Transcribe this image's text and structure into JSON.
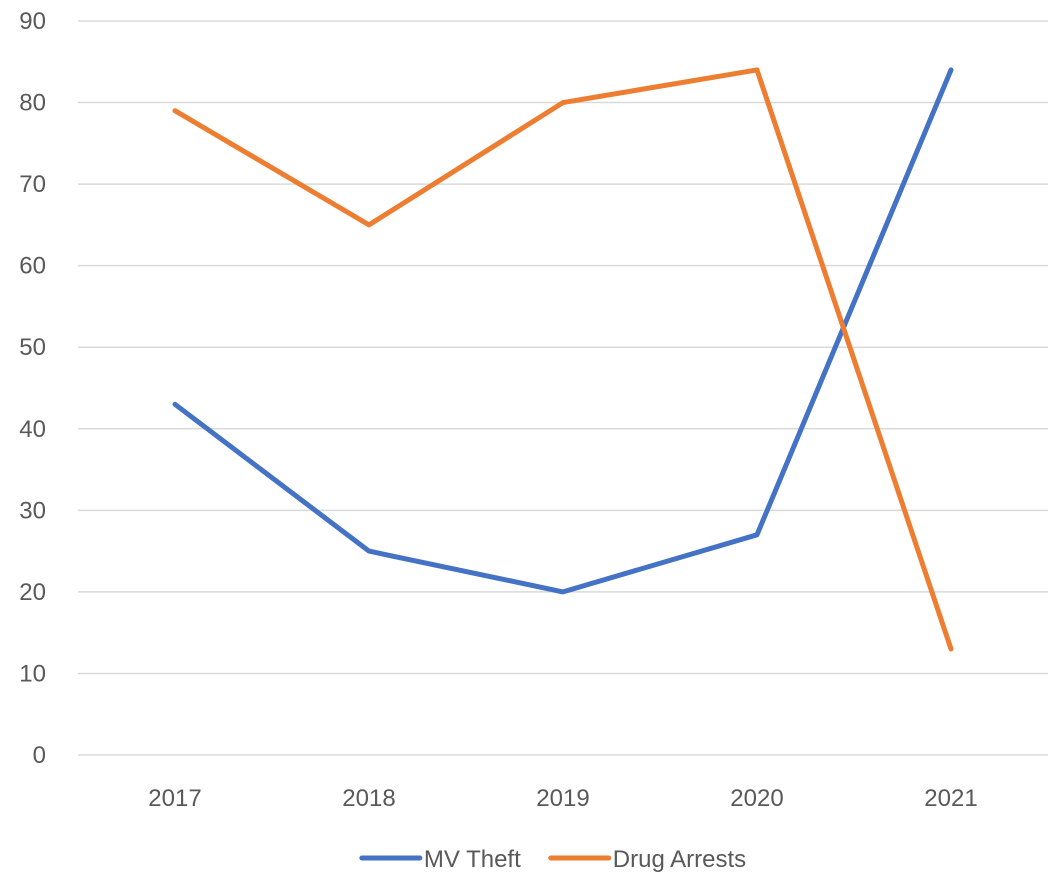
{
  "chart_data": {
    "type": "line",
    "title": "",
    "xlabel": "",
    "ylabel": "",
    "categories": [
      "2017",
      "2018",
      "2019",
      "2020",
      "2021"
    ],
    "ylim": [
      0,
      90
    ],
    "yticks": [
      0,
      10,
      20,
      30,
      40,
      50,
      60,
      70,
      80,
      90
    ],
    "grid": true,
    "legend_position": "bottom",
    "series": [
      {
        "name": "MV Theft",
        "color": "#4472C4",
        "values": [
          43,
          25,
          20,
          27,
          84
        ]
      },
      {
        "name": "Drug Arrests",
        "color": "#ED7D31",
        "values": [
          79,
          65,
          80,
          84,
          13
        ]
      }
    ]
  }
}
